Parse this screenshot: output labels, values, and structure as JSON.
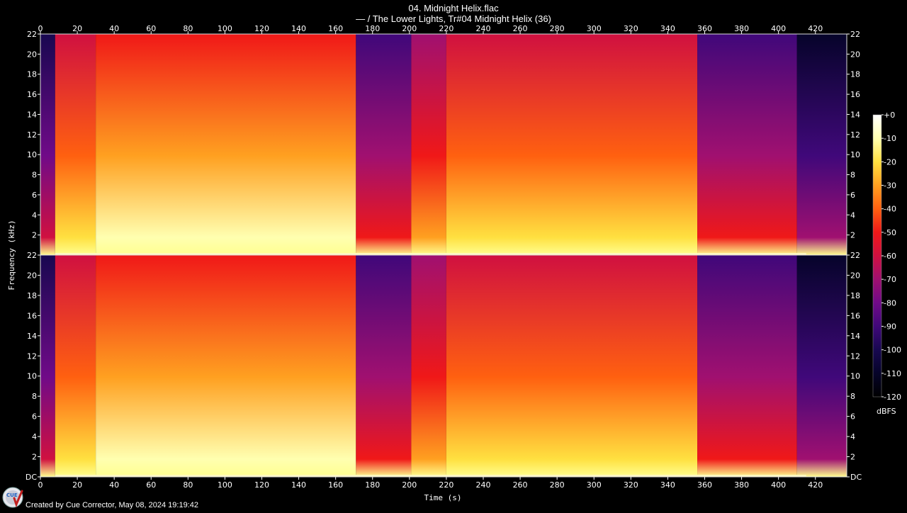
{
  "title": "04. Midnight Helix.flac",
  "subtitle": "— / The Lower Lights, Tr#04 Midnight Helix (36)",
  "footer": "Created by Cue Corrector, May 08, 2024 19:19:42",
  "logo_text": "CUE",
  "chart_data": {
    "type": "heatmap",
    "xlabel": "Time (s)",
    "ylabel": "Frequency (kHz)",
    "xlim": [
      0,
      437
    ],
    "ylim": [
      0,
      22
    ],
    "x_ticks": [
      0,
      20,
      40,
      60,
      80,
      100,
      120,
      140,
      160,
      180,
      200,
      220,
      240,
      260,
      280,
      300,
      320,
      340,
      360,
      380,
      400,
      420
    ],
    "y_ticks": [
      2,
      4,
      6,
      8,
      10,
      12,
      14,
      16,
      18,
      20,
      22
    ],
    "y_tick_labels_bottom": [
      "DC",
      "2",
      "4",
      "6",
      "8",
      "10",
      "12",
      "14",
      "16",
      "18",
      "20",
      "22"
    ],
    "channels": 2,
    "colorbar": {
      "unit": "dBFS",
      "range": [
        -120,
        0
      ],
      "ticks": [
        "+0",
        "-10",
        "-20",
        "-30",
        "-40",
        "-50",
        "-60",
        "-70",
        "-80",
        "-90",
        "-100",
        "-110",
        "-120"
      ],
      "colors": [
        "#ffffff",
        "#ffffb0",
        "#ffe040",
        "#ffa020",
        "#ff6010",
        "#f01818",
        "#d01040",
        "#a01070",
        "#700a88",
        "#40087a",
        "#180850",
        "#06042a",
        "#000000"
      ]
    },
    "segments": [
      {
        "start": 0,
        "end": 8,
        "level": -100
      },
      {
        "start": 8,
        "end": 30,
        "level": -55
      },
      {
        "start": 30,
        "end": 171,
        "level": -48
      },
      {
        "start": 171,
        "end": 201,
        "level": -90
      },
      {
        "start": 201,
        "end": 220,
        "level": -70
      },
      {
        "start": 220,
        "end": 356,
        "level": -58
      },
      {
        "start": 356,
        "end": 410,
        "level": -85
      },
      {
        "start": 410,
        "end": 437,
        "level": -110
      }
    ]
  }
}
